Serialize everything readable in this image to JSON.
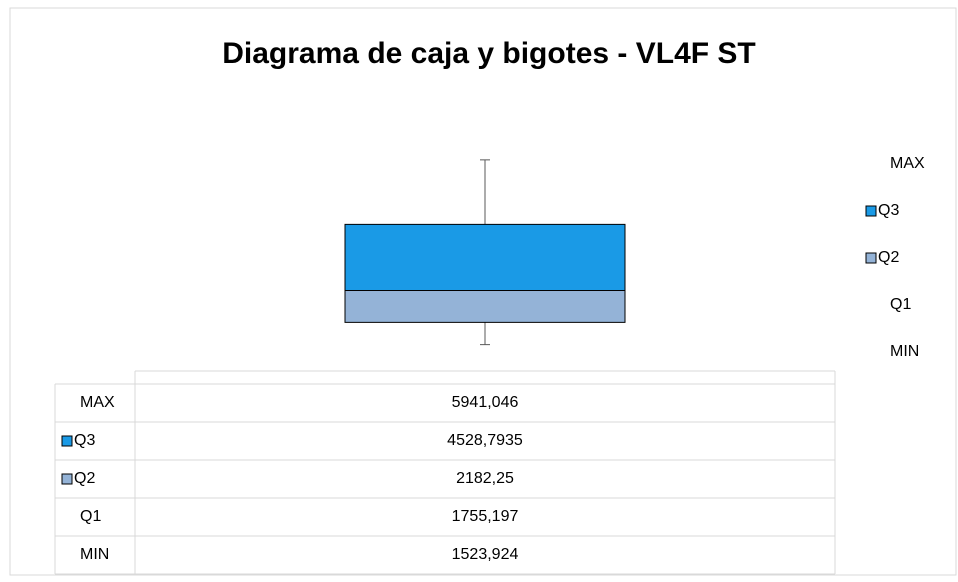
{
  "chart_data": {
    "type": "box",
    "title": "Diagrama de caja y bigotes - VL4F ST",
    "series": [
      {
        "name": "MAX",
        "values": [
          5941.046
        ],
        "value_labels": [
          "5941,046"
        ]
      },
      {
        "name": "Q3",
        "color": "#1a9ae6",
        "values": [
          4528.7935
        ],
        "value_labels": [
          "4528,7935"
        ]
      },
      {
        "name": "Q2",
        "color": "#94b3d7",
        "values": [
          2182.25
        ],
        "value_labels": [
          "2182,25"
        ]
      },
      {
        "name": "Q1",
        "values": [
          1755.197
        ],
        "value_labels": [
          "1755,197"
        ]
      },
      {
        "name": "MIN",
        "values": [
          1523.924
        ],
        "value_labels": [
          "1523,924"
        ]
      }
    ]
  }
}
